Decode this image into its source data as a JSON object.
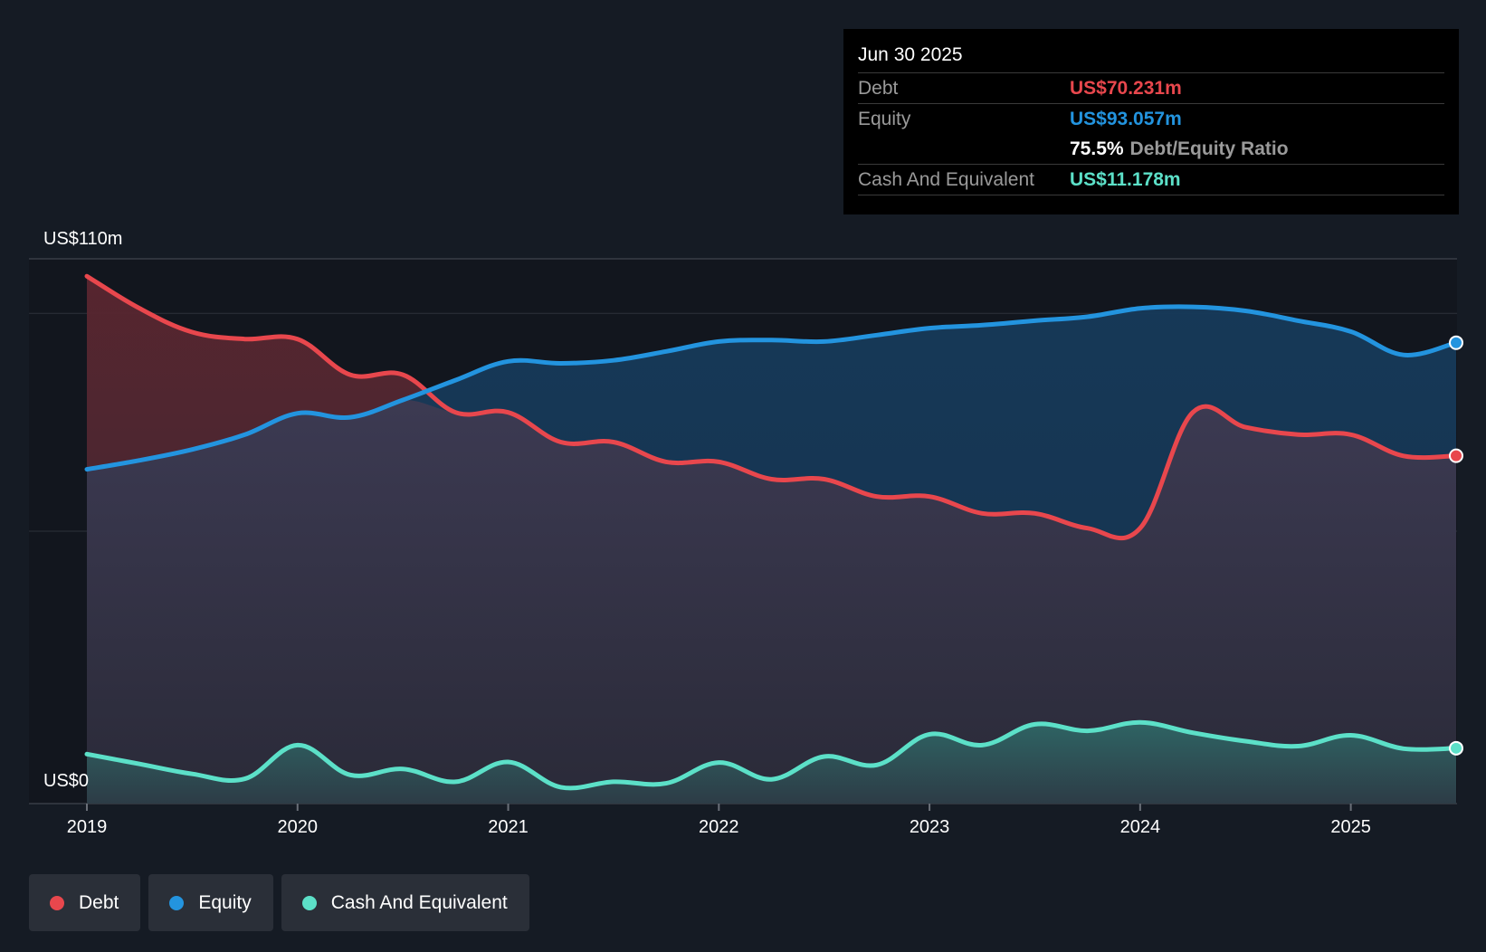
{
  "chart_data": {
    "type": "area",
    "title": "",
    "xlabel": "",
    "ylabel": "",
    "y_axis_labels": {
      "top": "US$110m",
      "bottom": "US$0"
    },
    "ylim": [
      0,
      110
    ],
    "xlim": [
      2019.0,
      2025.5
    ],
    "grid": true,
    "x_ticks": [
      {
        "value": 2019,
        "label": "2019"
      },
      {
        "value": 2020,
        "label": "2020"
      },
      {
        "value": 2021,
        "label": "2021"
      },
      {
        "value": 2022,
        "label": "2022"
      },
      {
        "value": 2023,
        "label": "2023"
      },
      {
        "value": 2024,
        "label": "2024"
      },
      {
        "value": 2025,
        "label": "2025"
      }
    ],
    "series": [
      {
        "name": "Debt",
        "color": "#e8474d",
        "x": [
          2019.0,
          2019.25,
          2019.5,
          2019.75,
          2020.0,
          2020.25,
          2020.5,
          2020.75,
          2021.0,
          2021.25,
          2021.5,
          2021.75,
          2022.0,
          2022.25,
          2022.5,
          2022.75,
          2023.0,
          2023.25,
          2023.5,
          2023.75,
          2024.0,
          2024.25,
          2024.5,
          2024.75,
          2025.0,
          2025.25,
          2025.5
        ],
        "values": [
          106.5,
          100.0,
          95.2,
          93.8,
          93.8,
          86.6,
          86.6,
          79.0,
          79.0,
          73.0,
          73.0,
          69.0,
          69.0,
          65.5,
          65.5,
          62.0,
          62.0,
          58.6,
          58.6,
          55.6,
          55.6,
          79.0,
          76.0,
          74.5,
          74.5,
          70.2,
          70.23
        ]
      },
      {
        "name": "Equity",
        "color": "#2394df",
        "x": [
          2019.0,
          2019.25,
          2019.5,
          2019.75,
          2020.0,
          2020.25,
          2020.5,
          2020.75,
          2021.0,
          2021.25,
          2021.5,
          2021.75,
          2022.0,
          2022.25,
          2022.5,
          2022.75,
          2023.0,
          2023.25,
          2023.5,
          2023.75,
          2024.0,
          2024.25,
          2024.5,
          2024.75,
          2025.0,
          2025.25,
          2025.5
        ],
        "values": [
          67.5,
          69.3,
          71.5,
          74.5,
          78.8,
          78.0,
          81.5,
          85.5,
          89.3,
          88.9,
          89.5,
          91.3,
          93.3,
          93.6,
          93.3,
          94.6,
          96.0,
          96.6,
          97.5,
          98.3,
          100.0,
          100.3,
          99.5,
          97.5,
          95.3,
          90.6,
          93.06
        ]
      },
      {
        "name": "Cash And Equivalent",
        "color": "#5ce0c8",
        "x": [
          2019.0,
          2019.25,
          2019.5,
          2019.75,
          2020.0,
          2020.25,
          2020.5,
          2020.75,
          2021.0,
          2021.25,
          2021.5,
          2021.75,
          2022.0,
          2022.25,
          2022.5,
          2022.75,
          2023.0,
          2023.25,
          2023.5,
          2023.75,
          2024.0,
          2024.25,
          2024.5,
          2024.75,
          2025.0,
          2025.25,
          2025.5
        ],
        "values": [
          10.0,
          8.0,
          6.0,
          5.0,
          11.8,
          5.8,
          7.0,
          4.4,
          8.4,
          3.3,
          4.4,
          4.1,
          8.3,
          4.9,
          9.5,
          7.8,
          14.0,
          11.8,
          16.0,
          14.7,
          16.4,
          14.3,
          12.6,
          11.6,
          13.8,
          11.1,
          11.18
        ]
      }
    ],
    "legend_position": "bottom-left"
  },
  "tooltip": {
    "date": "Jun 30 2025",
    "debt_label": "Debt",
    "debt_value": "US$70.231m",
    "equity_label": "Equity",
    "equity_value": "US$93.057m",
    "ratio_value": "75.5%",
    "ratio_label": "Debt/Equity Ratio",
    "cash_label": "Cash And Equivalent",
    "cash_value": "US$11.178m"
  },
  "legend": {
    "debt": "Debt",
    "equity": "Equity",
    "cash": "Cash And Equivalent"
  }
}
